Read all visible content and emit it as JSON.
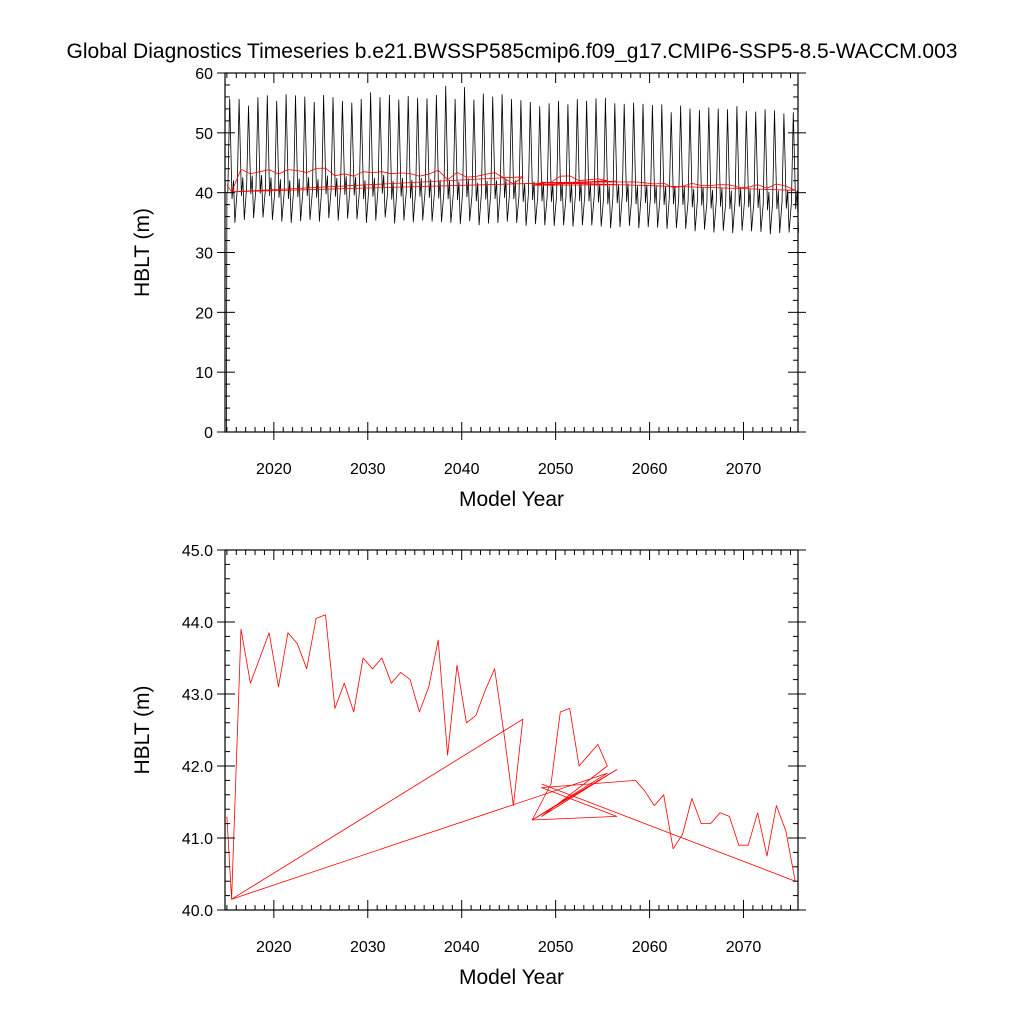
{
  "title": "Global Diagnostics Timeseries b.e21.BWSSP585cmip6.f09_g17.CMIP6-SSP5-8.5-WACCM.003",
  "colors": {
    "monthly": "#000000",
    "annual": "#ff0000",
    "axis": "#000000"
  },
  "chart_data": [
    {
      "type": "line",
      "title": "Global Diagnostics Timeseries b.e21.BWSSP585cmip6.f09_g17.CMIP6-SSP5-8.5-WACCM.003",
      "xlabel": "Model Year",
      "ylabel": "HBLT (m)",
      "xlim": [
        2014.8,
        2075.8
      ],
      "ylim": [
        0,
        60
      ],
      "xticks": [
        2020,
        2030,
        2040,
        2050,
        2060,
        2070
      ],
      "xtick_labels": [
        "2020",
        "2030",
        "2040",
        "2050",
        "2060",
        "2070"
      ],
      "yticks": [
        0,
        10,
        20,
        30,
        40,
        50,
        60
      ],
      "ytick_labels": [
        "0",
        "10",
        "20",
        "30",
        "40",
        "50",
        "60"
      ],
      "grid": false,
      "series": [
        {
          "color": "#000000",
          "description": "monthly global mean; seasonal cycle min/max per year",
          "years": [
            2015,
            2016,
            2017,
            2018,
            2019,
            2020,
            2021,
            2022,
            2023,
            2024,
            2025,
            2026,
            2027,
            2028,
            2029,
            2030,
            2031,
            2032,
            2033,
            2034,
            2035,
            2036,
            2037,
            2038,
            2039,
            2040,
            2041,
            2042,
            2043,
            2044,
            2045,
            2046,
            2047,
            2048,
            2049,
            2050,
            2051,
            2052,
            2053,
            2054,
            2055,
            2056,
            2057,
            2058,
            2059,
            2060,
            2061,
            2062,
            2063,
            2064,
            2065,
            2066,
            2067,
            2068,
            2069,
            2070,
            2071,
            2072,
            2073,
            2074,
            2075
          ],
          "yearly_max": [
            55.7,
            55.6,
            54.5,
            55.9,
            56.2,
            55.3,
            56.4,
            56.2,
            56.0,
            55.1,
            56.3,
            55.9,
            55.3,
            55.0,
            55.6,
            56.7,
            55.9,
            56.3,
            55.5,
            56.1,
            55.8,
            55.7,
            56.3,
            57.8,
            55.6,
            57.6,
            55.5,
            56.5,
            56.0,
            56.4,
            55.6,
            55.4,
            55.1,
            54.4,
            54.9,
            55.3,
            54.7,
            55.6,
            55.3,
            55.7,
            55.8,
            54.9,
            54.8,
            55.0,
            54.8,
            54.6,
            54.7,
            53.4,
            54.5,
            54.0,
            53.8,
            54.2,
            54.0,
            53.9,
            54.4,
            53.6,
            53.5,
            53.9,
            53.7,
            53.2,
            53.4
          ],
          "yearly_min": [
            35.0,
            35.5,
            35.8,
            35.9,
            35.5,
            35.2,
            35.0,
            35.3,
            35.5,
            35.2,
            35.8,
            35.4,
            35.7,
            35.6,
            35.0,
            35.4,
            35.9,
            34.9,
            35.4,
            35.1,
            35.4,
            35.2,
            35.1,
            35.0,
            34.8,
            35.3,
            34.6,
            34.9,
            35.0,
            35.2,
            35.0,
            34.5,
            34.8,
            34.6,
            34.5,
            34.6,
            34.4,
            34.6,
            34.6,
            34.4,
            34.1,
            34.3,
            34.5,
            34.1,
            34.3,
            34.2,
            34.0,
            34.1,
            34.0,
            33.6,
            33.9,
            33.4,
            33.7,
            33.3,
            33.7,
            33.6,
            33.5,
            33.1,
            33.3,
            33.4,
            33.3
          ]
        },
        {
          "color": "#ff0000",
          "description": "annual mean (same values as lower panel)",
          "ref": "annual"
        }
      ]
    },
    {
      "type": "line",
      "xlabel": "Model Year",
      "ylabel": "HBLT (m)",
      "xlim": [
        2014.8,
        2075.8
      ],
      "ylim": [
        40.0,
        45.0
      ],
      "xticks": [
        2020,
        2030,
        2040,
        2050,
        2060,
        2070
      ],
      "xtick_labels": [
        "2020",
        "2030",
        "2040",
        "2050",
        "2060",
        "2070"
      ],
      "yticks": [
        40,
        41,
        42,
        43,
        44,
        45
      ],
      "ytick_labels": [
        "40.0",
        "41.0",
        "42.0",
        "43.0",
        "44.0",
        "45.0"
      ],
      "grid": false,
      "series": [
        {
          "color": "#ff0000",
          "description": "annual mean",
          "x": [
            2015.0,
            2015.5,
            2016.5,
            2017.5,
            2018.5,
            2019.5,
            2020.5,
            2021.5,
            2022.5,
            2023.5,
            2024.5,
            2025.5,
            2026.5,
            2027.5,
            2028.5,
            2029.5,
            2030.5,
            2031.5,
            2032.5,
            2033.5,
            2034.5,
            2035.5,
            2036.5,
            2037.5,
            2038.5,
            2039.5,
            2040.5,
            2041.5,
            2042.5,
            2043.5,
            2044.5,
            2045.5,
            2046.5,
            2015.5,
            2055.5,
            2047.5,
            2049.5,
            2050.5,
            2051.5,
            2052.5,
            2053.5,
            2054.5,
            2055.5,
            2048.5,
            2056.5,
            2047.5,
            2056.5,
            2056.5,
            2048.5,
            2058.5,
            2059.5,
            2060.5,
            2061.5,
            2062.5,
            2063.5,
            2064.5,
            2065.5,
            2066.5,
            2067.5,
            2068.5,
            2069.5,
            2070.5,
            2071.5,
            2072.5,
            2073.5,
            2074.5,
            2075.5,
            2048.5
          ],
          "y": [
            41.3,
            40.15,
            43.9,
            43.15,
            43.5,
            43.85,
            43.1,
            43.85,
            43.7,
            43.35,
            44.05,
            44.1,
            42.8,
            43.15,
            42.75,
            43.5,
            43.35,
            43.5,
            43.15,
            43.3,
            43.2,
            42.75,
            43.1,
            43.75,
            42.15,
            43.4,
            42.6,
            42.7,
            43.05,
            43.35,
            42.45,
            41.45,
            42.65,
            40.15,
            41.9,
            41.25,
            41.75,
            42.75,
            42.8,
            42.0,
            42.15,
            42.3,
            42.0,
            41.3,
            41.95,
            41.25,
            41.3,
            41.3,
            41.7,
            41.8,
            41.65,
            41.45,
            41.6,
            40.85,
            41.05,
            41.55,
            41.2,
            41.2,
            41.35,
            41.3,
            40.9,
            40.9,
            41.35,
            40.75,
            41.45,
            41.1,
            40.4,
            41.75
          ]
        }
      ]
    }
  ]
}
